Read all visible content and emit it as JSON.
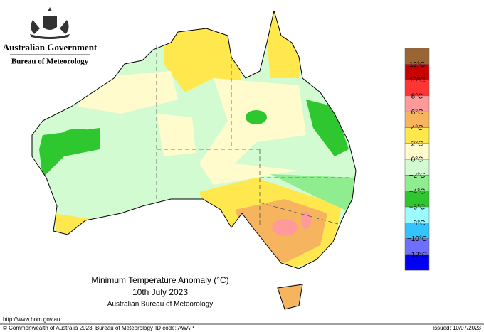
{
  "header": {
    "government": "Australian Government",
    "agency": "Bureau of Meteorology"
  },
  "map": {
    "title": "Minimum Temperature Anomaly (°C)",
    "date": "10th July 2023",
    "source": "Australian Bureau of Meteorology"
  },
  "legend": {
    "colors": [
      "#996633",
      "#c80000",
      "#ff3535",
      "#ff9a9a",
      "#f7b45e",
      "#ffe84d",
      "#fffbcc",
      "#d2fbd2",
      "#8fec8f",
      "#2fc72f",
      "#9cfbff",
      "#33c3ff",
      "#6e6eff",
      "#0000f5"
    ],
    "labels": [
      "12°C",
      "10°C",
      "8°C",
      "6°C",
      "4°C",
      "2°C",
      "0°C",
      "−2°C",
      "−4°C",
      "−6°C",
      "−8°C",
      "−10°C",
      "−12°C"
    ]
  },
  "footer": {
    "url": "http://www.bom.gov.au",
    "copyright": "© Commonwealth of Australia 2023, Bureau of Meteorology",
    "id_code": "ID code: AWAP",
    "issued": "Issued: 10/07/2023"
  }
}
